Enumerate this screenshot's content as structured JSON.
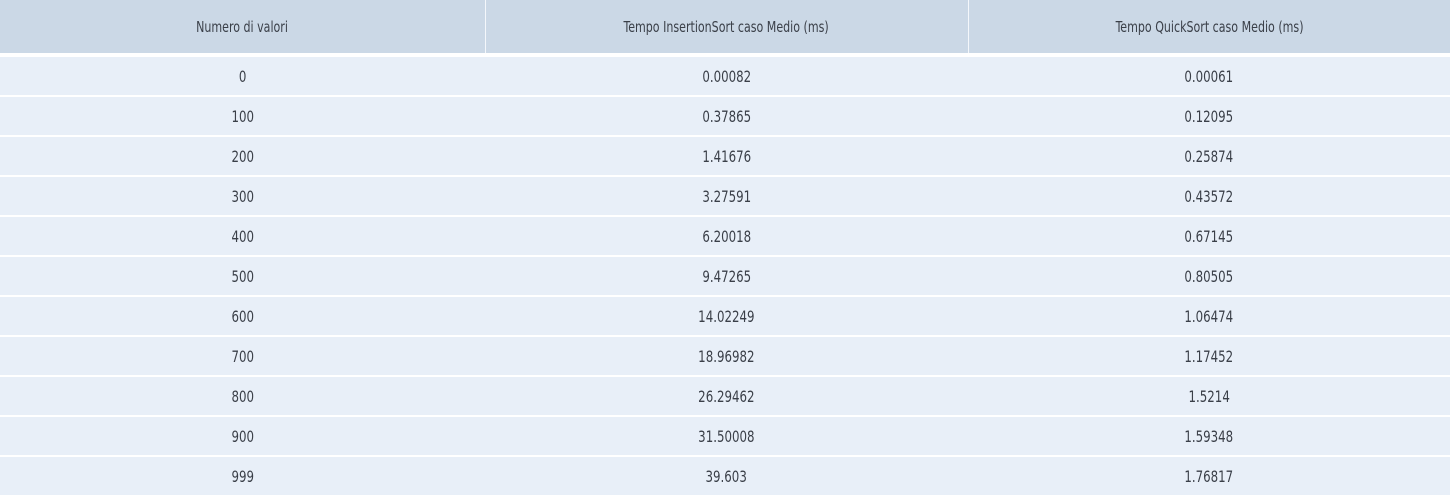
{
  "table": {
    "headers": [
      "Numero di valori",
      "Tempo InsertionSort caso Medio (ms)",
      "Tempo QuickSort caso Medio (ms)"
    ],
    "rows": [
      [
        "0",
        "0.00082",
        "0.00061"
      ],
      [
        "100",
        "0.37865",
        "0.12095"
      ],
      [
        "200",
        "1.41676",
        "0.25874"
      ],
      [
        "300",
        "3.27591",
        "0.43572"
      ],
      [
        "400",
        "6.20018",
        "0.67145"
      ],
      [
        "500",
        "9.47265",
        "0.80505"
      ],
      [
        "600",
        "14.02249",
        "1.06474"
      ],
      [
        "700",
        "18.96982",
        "1.17452"
      ],
      [
        "800",
        "26.29462",
        "1.5214"
      ],
      [
        "900",
        "31.50008",
        "1.59348"
      ],
      [
        "999",
        "39.603",
        "1.76817"
      ]
    ]
  },
  "colors": {
    "header_bg": "#cbd8e6",
    "row_bg": "#e8eff8",
    "text": "#3a3f48",
    "separator": "#ffffff"
  }
}
